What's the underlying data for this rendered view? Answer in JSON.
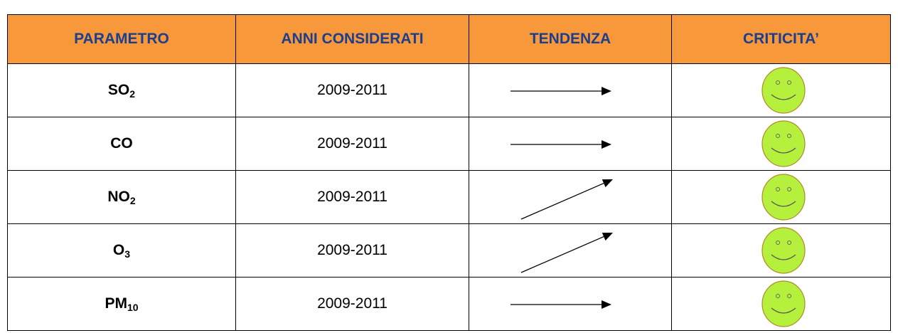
{
  "table": {
    "header": [
      "PARAMETRO",
      "ANNI CONSIDERATI",
      "TENDENZA",
      "CRITICITA’"
    ],
    "rows": [
      {
        "parameter": {
          "base": "SO",
          "sub": "2"
        },
        "years": "2009-2011"
      },
      {
        "parameter": {
          "base": "CO"
        },
        "years": "2009-2011"
      },
      {
        "parameter": {
          "base": "NO",
          "sub": "2"
        },
        "years": "2009-2011"
      },
      {
        "parameter": {
          "base": "O",
          "sub": "3"
        },
        "years": "2009-2011"
      },
      {
        "parameter": {
          "base": "PM",
          "sub": "10"
        },
        "years": "2009-2011"
      }
    ]
  }
}
